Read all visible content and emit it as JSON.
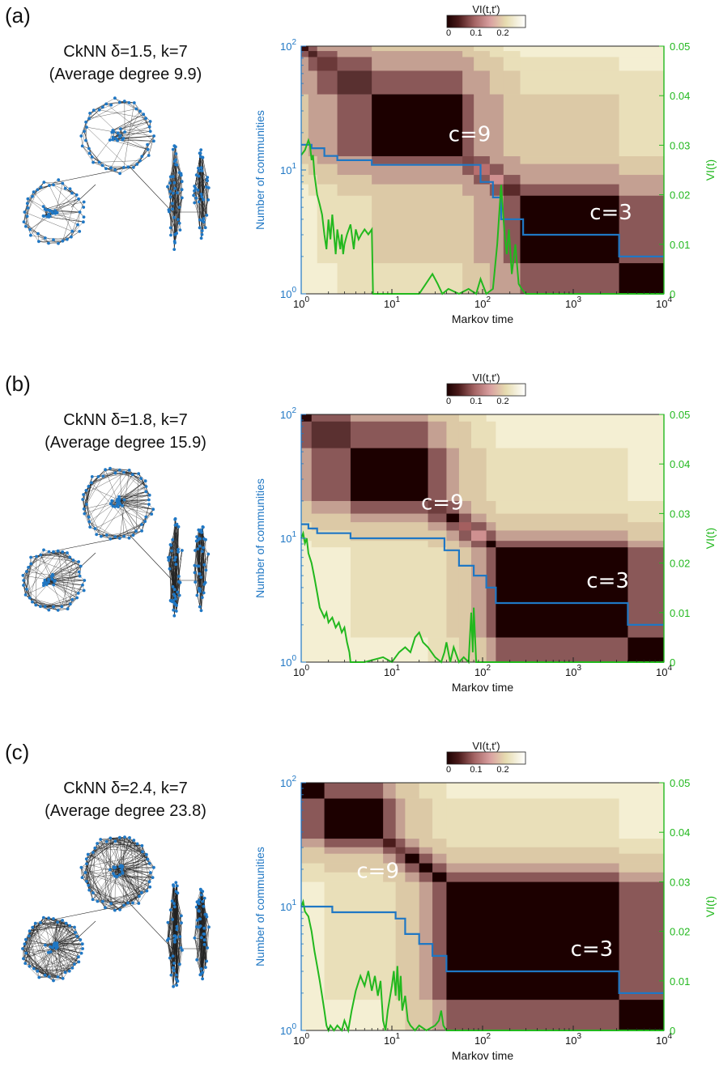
{
  "colors": {
    "blue": "#1f77c4",
    "green": "#22b81e",
    "heat_low": "#1c0000",
    "heat_mid": "#c8888a",
    "heat_high": "#ffffff"
  },
  "panels": [
    {
      "id": "a",
      "panel_label": "(a)",
      "graph_title_1": "CkNN δ=1.5, k=7",
      "graph_title_2": "(Average degree 9.9)",
      "colorbar_title": "VI(t,t')",
      "colorbar_ticks": [
        "0",
        "0.1",
        "0.2"
      ],
      "annot_c9": "c=9",
      "annot_c3": "c=3"
    },
    {
      "id": "b",
      "panel_label": "(b)",
      "graph_title_1": "CkNN δ=1.8, k=7",
      "graph_title_2": "(Average degree 15.9)",
      "colorbar_title": "VI(t,t')",
      "colorbar_ticks": [
        "0",
        "0.1",
        "0.2"
      ],
      "annot_c9": "c=9",
      "annot_c3": "c=3"
    },
    {
      "id": "c",
      "panel_label": "(c)",
      "graph_title_1": "CkNN δ=2.4, k=7",
      "graph_title_2": "(Average degree 23.8)",
      "colorbar_title": "VI(t,t')",
      "colorbar_ticks": [
        "0",
        "0.1",
        "0.2"
      ],
      "annot_c9": "c=9",
      "annot_c3": "c=3"
    }
  ],
  "chart_data": [
    {
      "type": "heatmap",
      "panel": "a",
      "xlabel": "Markov time",
      "ylabel_left": "Number of communities",
      "ylabel_right": "VI(t)",
      "x_scale": "log",
      "xlim": [
        1,
        10000
      ],
      "x_ticks": [
        "10^0",
        "10^1",
        "10^2",
        "10^3",
        "10^4"
      ],
      "left_scale": "log",
      "left_ylim": [
        1,
        100
      ],
      "left_ticks": [
        "10^0",
        "10^1",
        "10^2"
      ],
      "right_ylim": [
        0,
        0.05
      ],
      "right_ticks": [
        "0",
        "0.01",
        "0.02",
        "0.03",
        "0.04",
        "0.05"
      ],
      "heatmap_blocks_markov_time": [
        [
          1,
          1.2
        ],
        [
          1.2,
          1.5
        ],
        [
          1.5,
          2.5
        ],
        [
          2.5,
          6
        ],
        [
          6,
          60
        ],
        [
          60,
          80
        ],
        [
          80,
          120
        ],
        [
          120,
          170
        ],
        [
          170,
          260
        ],
        [
          260,
          3200
        ],
        [
          3200,
          10000
        ]
      ],
      "series": [
        {
          "name": "Number of communities",
          "color": "#1f77c4",
          "step": true,
          "x": [
            1,
            1.3,
            1.8,
            2.5,
            6,
            60,
            95,
            130,
            160,
            280,
            3200,
            10000
          ],
          "y": [
            16,
            15,
            13,
            12,
            11,
            11,
            8,
            6,
            4,
            3,
            2,
            2
          ]
        },
        {
          "name": "VI(t)",
          "color": "#22b81e",
          "x": [
            1,
            1.1,
            1.2,
            1.25,
            1.3,
            1.35,
            1.4,
            1.5,
            1.6,
            1.7,
            1.8,
            1.9,
            2.0,
            2.1,
            2.2,
            2.3,
            2.4,
            2.5,
            2.6,
            2.7,
            2.8,
            2.9,
            3.0,
            3.2,
            3.5,
            3.8,
            4.0,
            4.3,
            4.6,
            5.0,
            5.5,
            6.0,
            6.2,
            7,
            20,
            28,
            32,
            36,
            42,
            55,
            70,
            85,
            95,
            110,
            130,
            145,
            160,
            175,
            185,
            195,
            210,
            230,
            250,
            270,
            300,
            10000
          ],
          "y": [
            0.028,
            0.029,
            0.031,
            0.03,
            0.027,
            0.028,
            0.024,
            0.02,
            0.018,
            0.016,
            0.012,
            0.009,
            0.015,
            0.011,
            0.016,
            0.012,
            0.008,
            0.013,
            0.011,
            0.009,
            0.012,
            0.008,
            0.01,
            0.012,
            0.014,
            0.009,
            0.013,
            0.011,
            0.012,
            0.013,
            0.012,
            0.013,
            0.0,
            0.0,
            0.0,
            0.004,
            0.002,
            0.0,
            0.001,
            0.0,
            0.001,
            0.0,
            0.003,
            0.0,
            0.001,
            0.01,
            0.022,
            0.012,
            0.008,
            0.013,
            0.004,
            0.01,
            0.002,
            0.001,
            0.0,
            0.0
          ]
        }
      ],
      "annotations": [
        "c=9",
        "c=3"
      ]
    },
    {
      "type": "heatmap",
      "panel": "b",
      "xlabel": "Markov time",
      "ylabel_left": "Number of communities",
      "ylabel_right": "VI(t)",
      "x_scale": "log",
      "xlim": [
        1,
        10000
      ],
      "x_ticks": [
        "10^0",
        "10^1",
        "10^2",
        "10^3",
        "10^4"
      ],
      "left_scale": "log",
      "left_ylim": [
        1,
        100
      ],
      "left_ticks": [
        "10^0",
        "10^1",
        "10^2"
      ],
      "right_ylim": [
        0,
        0.05
      ],
      "right_ticks": [
        "0",
        "0.01",
        "0.02",
        "0.03",
        "0.04",
        "0.05"
      ],
      "heatmap_blocks_markov_time": [
        [
          1,
          1.3
        ],
        [
          1.3,
          3.5
        ],
        [
          3.5,
          25
        ],
        [
          25,
          40
        ],
        [
          40,
          55
        ],
        [
          55,
          75
        ],
        [
          75,
          110
        ],
        [
          110,
          140
        ],
        [
          140,
          4000
        ],
        [
          4000,
          10000
        ]
      ],
      "series": [
        {
          "name": "Number of communities",
          "color": "#1f77c4",
          "step": true,
          "x": [
            1,
            1.2,
            1.5,
            3.5,
            25,
            38,
            55,
            80,
            110,
            140,
            4000,
            10000
          ],
          "y": [
            13,
            12,
            11,
            10,
            10,
            8,
            6,
            5,
            4,
            3,
            2,
            2
          ]
        },
        {
          "name": "VI(t)",
          "color": "#22b81e",
          "x": [
            1,
            1.05,
            1.1,
            1.15,
            1.2,
            1.3,
            1.4,
            1.5,
            1.6,
            1.7,
            1.8,
            1.9,
            2.0,
            2.2,
            2.4,
            2.6,
            2.8,
            3.0,
            3.2,
            3.4,
            3.5,
            3.7,
            5,
            8,
            10,
            12,
            14,
            16,
            18,
            20,
            22,
            25,
            30,
            35,
            38,
            40,
            44,
            48,
            55,
            62,
            70,
            75,
            78,
            80,
            85,
            100,
            10000
          ],
          "y": [
            0.025,
            0.026,
            0.024,
            0.025,
            0.022,
            0.02,
            0.017,
            0.014,
            0.011,
            0.01,
            0.009,
            0.01,
            0.008,
            0.009,
            0.007,
            0.008,
            0.006,
            0.007,
            0.004,
            0.002,
            0.0,
            0.0,
            0.0,
            0.001,
            0.0,
            0.002,
            0.003,
            0.002,
            0.005,
            0.006,
            0.004,
            0.003,
            0.001,
            0.0,
            0.002,
            0.004,
            0.0,
            0.003,
            0.0,
            0.001,
            0.0,
            0.01,
            0.002,
            0.011,
            0.0,
            0.0,
            0.0
          ]
        }
      ],
      "annotations": [
        "c=9",
        "c=3"
      ]
    },
    {
      "type": "heatmap",
      "panel": "c",
      "xlabel": "Markov time",
      "ylabel_left": "Number of communities",
      "ylabel_right": "VI(t)",
      "x_scale": "log",
      "xlim": [
        1,
        10000
      ],
      "x_ticks": [
        "10^0",
        "10^1",
        "10^2",
        "10^3",
        "10^4"
      ],
      "left_scale": "log",
      "left_ylim": [
        1,
        100
      ],
      "left_ticks": [
        "10^0",
        "10^1",
        "10^2"
      ],
      "right_ylim": [
        0,
        0.05
      ],
      "right_ticks": [
        "0",
        "0.01",
        "0.02",
        "0.03",
        "0.04",
        "0.05"
      ],
      "heatmap_blocks_markov_time": [
        [
          1,
          1.8
        ],
        [
          1.8,
          8
        ],
        [
          8,
          11
        ],
        [
          11,
          14
        ],
        [
          14,
          20
        ],
        [
          20,
          28
        ],
        [
          28,
          40
        ],
        [
          40,
          3200
        ],
        [
          3200,
          10000
        ]
      ],
      "series": [
        {
          "name": "Number of communities",
          "color": "#1f77c4",
          "step": true,
          "x": [
            1,
            1.8,
            2.2,
            8.5,
            11,
            14,
            20,
            28,
            40,
            3200,
            10000
          ],
          "y": [
            10,
            10,
            9,
            9,
            8,
            6,
            5,
            4,
            3,
            2,
            2
          ]
        },
        {
          "name": "VI(t)",
          "color": "#22b81e",
          "x": [
            1,
            1.05,
            1.1,
            1.2,
            1.3,
            1.4,
            1.5,
            1.6,
            1.7,
            1.8,
            1.9,
            2.0,
            2.1,
            2.3,
            2.5,
            2.8,
            3.0,
            3.3,
            3.6,
            4.0,
            4.5,
            5.0,
            5.5,
            6.0,
            6.5,
            7.0,
            7.5,
            8.0,
            8.5,
            9,
            10,
            10.5,
            11,
            11.5,
            12,
            12.5,
            13,
            14,
            15,
            16,
            18,
            20,
            24,
            30,
            33,
            35,
            37,
            40,
            45,
            10000
          ],
          "y": [
            0.025,
            0.026,
            0.024,
            0.023,
            0.02,
            0.016,
            0.013,
            0.01,
            0.007,
            0.004,
            0.001,
            0.0,
            0.001,
            0.0,
            0.001,
            0.0,
            0.002,
            0.0,
            0.004,
            0.008,
            0.011,
            0.009,
            0.012,
            0.008,
            0.011,
            0.007,
            0.01,
            0.002,
            0.0,
            0.004,
            0.009,
            0.012,
            0.007,
            0.013,
            0.006,
            0.011,
            0.004,
            0.007,
            0.002,
            0.001,
            0.0,
            0.001,
            0.0,
            0.001,
            0.002,
            0.004,
            0.001,
            0.0,
            0.0,
            0.0
          ]
        }
      ],
      "annotations": [
        "c=9",
        "c=3"
      ]
    }
  ]
}
